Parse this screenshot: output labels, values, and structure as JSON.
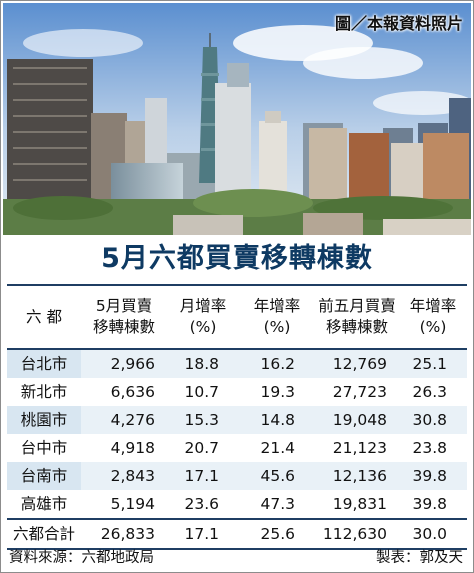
{
  "photo_credit": "圖／本報資料照片",
  "title": "5月六都買賣移轉棟數",
  "table": {
    "headers": [
      [
        "六  都"
      ],
      [
        "5月買賣",
        "移轉棟數"
      ],
      [
        "月增率",
        "(%)"
      ],
      [
        "年增率",
        "(%)"
      ],
      [
        "前五月買賣",
        "移轉棟數"
      ],
      [
        "年增率",
        "(%)"
      ]
    ],
    "rows": [
      [
        "台北市",
        "2,966",
        "18.8",
        "16.2",
        "12,769",
        "25.1"
      ],
      [
        "新北市",
        "6,636",
        "10.7",
        "19.3",
        "27,723",
        "26.3"
      ],
      [
        "桃園市",
        "4,276",
        "15.3",
        "14.8",
        "19,048",
        "30.8"
      ],
      [
        "台中市",
        "4,918",
        "20.7",
        "21.4",
        "21,123",
        "23.8"
      ],
      [
        "台南市",
        "2,843",
        "17.1",
        "45.6",
        "12,136",
        "39.8"
      ],
      [
        "高雄市",
        "5,194",
        "23.6",
        "47.3",
        "19,831",
        "39.8"
      ]
    ],
    "total": [
      "六都合計",
      "26,833",
      "17.1",
      "25.6",
      "112,630",
      "30.0"
    ]
  },
  "footer": {
    "source": "資料來源：六都地政局",
    "maker": "製表：郭及天"
  }
}
